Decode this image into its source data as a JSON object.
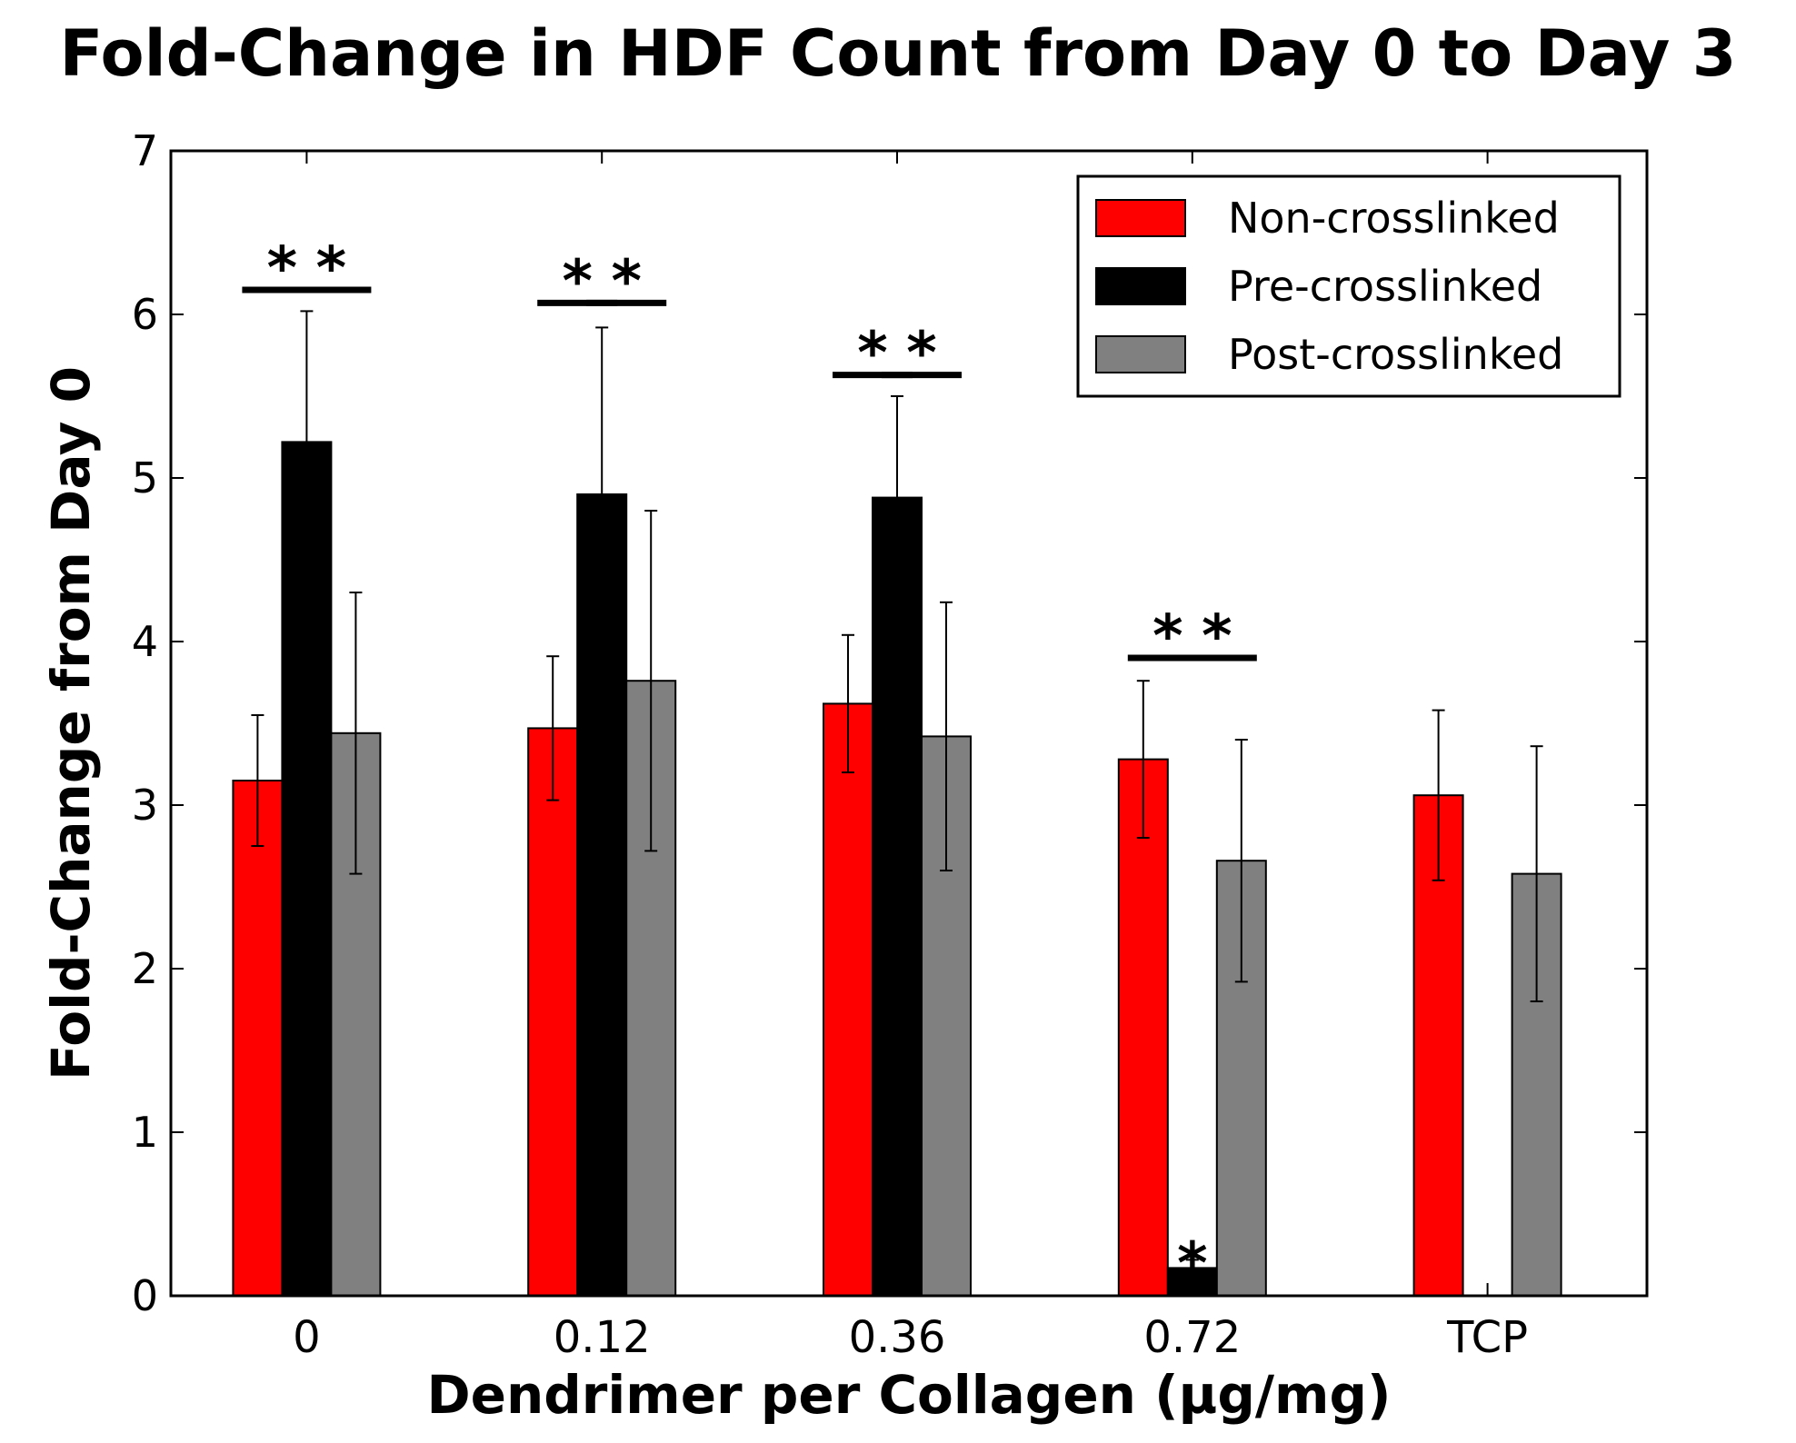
{
  "chart_data": {
    "type": "bar",
    "title": "Fold-Change in HDF Count from Day 0 to Day 3",
    "xlabel": "Dendrimer per Collagen (µg/mg)",
    "ylabel": "Fold-Change from Day 0",
    "ylim": [
      0,
      7
    ],
    "yticks": [
      "0",
      "1",
      "2",
      "3",
      "4",
      "5",
      "6",
      "7"
    ],
    "categories": [
      "0",
      "0.12",
      "0.36",
      "0.72",
      "TCP"
    ],
    "legend_position": "top-right",
    "significance_marker": "*",
    "series": [
      {
        "name": "Non-crosslinked",
        "color": "#ff0000",
        "values": [
          3.15,
          3.47,
          3.62,
          3.28,
          3.06
        ],
        "errors": [
          0.4,
          0.44,
          0.42,
          0.48,
          0.52
        ]
      },
      {
        "name": "Pre-crosslinked",
        "color": "#000000",
        "values": [
          5.22,
          4.9,
          4.88,
          0.17,
          null
        ],
        "errors": [
          0.8,
          1.02,
          0.62,
          0.05,
          null
        ]
      },
      {
        "name": "Post-crosslinked",
        "color": "#808080",
        "values": [
          3.44,
          3.76,
          3.42,
          2.66,
          2.58
        ],
        "errors": [
          0.86,
          1.04,
          0.82,
          0.74,
          0.78
        ]
      }
    ],
    "significance_lines": [
      {
        "category": 0,
        "from_series": 0,
        "to_series": 1,
        "y": 6.15
      },
      {
        "category": 0,
        "from_series": 1,
        "to_series": 2,
        "y": 6.15
      },
      {
        "category": 1,
        "from_series": 0,
        "to_series": 1,
        "y": 6.07
      },
      {
        "category": 1,
        "from_series": 1,
        "to_series": 2,
        "y": 6.07
      },
      {
        "category": 2,
        "from_series": 0,
        "to_series": 1,
        "y": 5.63
      },
      {
        "category": 2,
        "from_series": 1,
        "to_series": 2,
        "y": 5.63
      },
      {
        "category": 3,
        "from_series": 0,
        "to_series": 1,
        "y": 3.9
      },
      {
        "category": 3,
        "from_series": 1,
        "to_series": 2,
        "y": 3.9
      }
    ],
    "bar_annotations": [
      {
        "category": 3,
        "series": 1,
        "text": "*"
      }
    ]
  }
}
